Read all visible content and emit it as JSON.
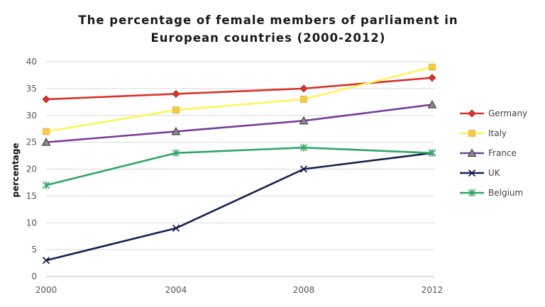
{
  "chart_data": {
    "type": "line",
    "title_line1": "The percentage of female members of parliament in",
    "title_line2": "European countries (2000-2012)",
    "ylabel": "percentage",
    "xlabel": "",
    "x": [
      "2000",
      "2004",
      "2008",
      "2012"
    ],
    "ylim": [
      0,
      40
    ],
    "yticks": [
      "0",
      "5",
      "10",
      "15",
      "20",
      "25",
      "30",
      "35",
      "40"
    ],
    "grid": "horizontal",
    "legend_position": "right",
    "series": [
      {
        "name": "Germany",
        "values": [
          33,
          34,
          35,
          37
        ],
        "color": "#d9322b",
        "marker": "diamond"
      },
      {
        "name": "Italy",
        "values": [
          27,
          31,
          33,
          39
        ],
        "color": "#fef45a",
        "marker": "square"
      },
      {
        "name": "France",
        "values": [
          25,
          27,
          29,
          32
        ],
        "color": "#7a3c9a",
        "marker": "triangle"
      },
      {
        "name": "UK",
        "values": [
          3,
          9,
          20,
          23
        ],
        "color": "#16224f",
        "marker": "x"
      },
      {
        "name": "Belgium",
        "values": [
          17,
          23,
          24,
          23
        ],
        "color": "#2ea663",
        "marker": "star"
      }
    ]
  }
}
